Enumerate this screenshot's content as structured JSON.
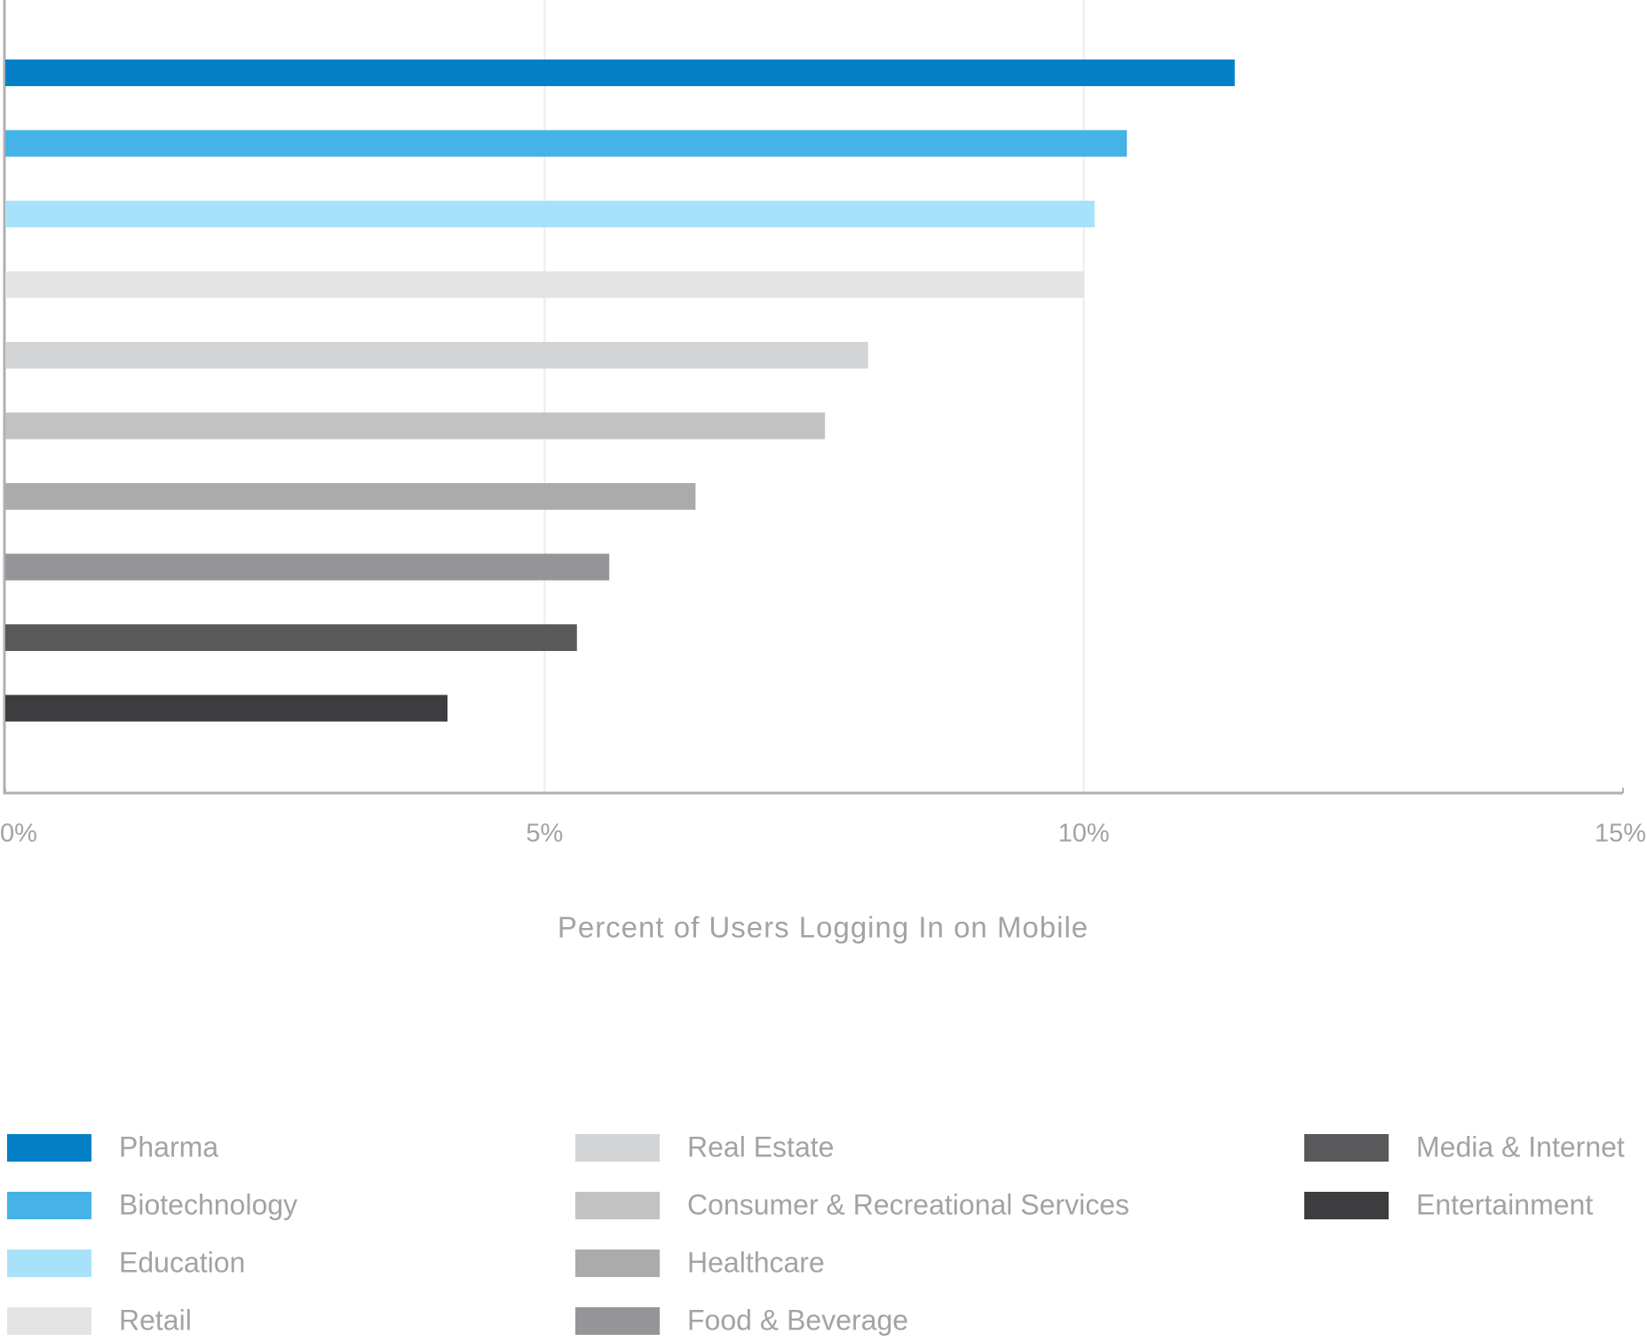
{
  "chart_data": {
    "type": "bar",
    "orientation": "horizontal",
    "x_label": "Percent of Users Logging In on Mobile",
    "categories": [
      "Pharma",
      "Biotechnology",
      "Education",
      "Retail",
      "Real Estate",
      "Consumer & Recreational Services",
      "Healthcare",
      "Food & Beverage",
      "Media & Internet",
      "Entertainment"
    ],
    "values": [
      11.4,
      10.4,
      10.1,
      10.0,
      8.0,
      7.6,
      6.4,
      5.6,
      5.3,
      4.1
    ],
    "colors": [
      "#0480c6",
      "#45b3e7",
      "#a8e2fa",
      "#e4e4e5",
      "#d2d4d5",
      "#c3c2c3",
      "#ababab",
      "#959498",
      "#59595b",
      "#3d3c3e"
    ],
    "xlim": [
      0,
      15
    ],
    "xticks": [
      {
        "value": 0,
        "label": "0%"
      },
      {
        "value": 5,
        "label": "5%"
      },
      {
        "value": 10,
        "label": "10%"
      },
      {
        "value": 15,
        "label": "15%"
      }
    ],
    "grid": true
  }
}
